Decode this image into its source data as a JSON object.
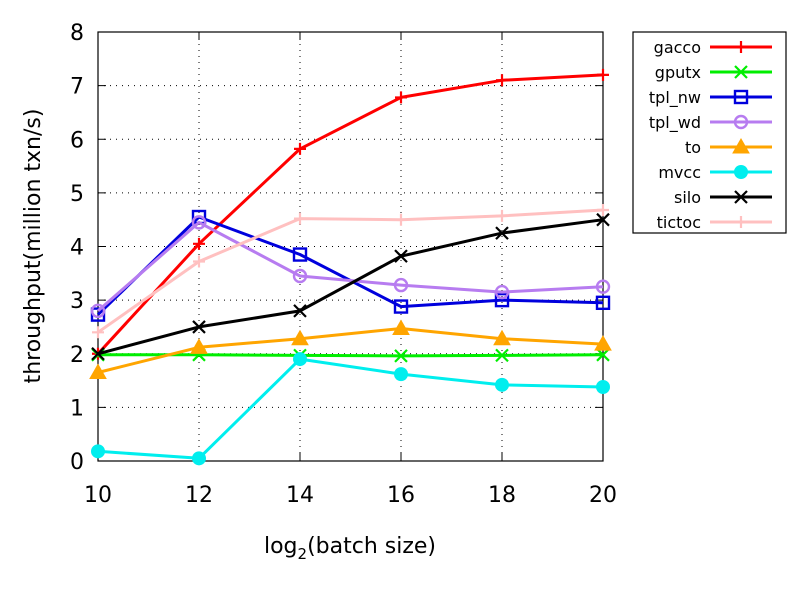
{
  "chart_data": {
    "type": "line",
    "title": "",
    "xlabel_prefix": "log",
    "xlabel_sub": "2",
    "xlabel_suffix": "(batch size)",
    "ylabel": "throughput(million txn/s)",
    "xlim": [
      10,
      20
    ],
    "ylim": [
      0,
      8
    ],
    "x_ticks": [
      10,
      12,
      14,
      16,
      18,
      20
    ],
    "y_ticks": [
      0,
      1,
      2,
      3,
      4,
      5,
      6,
      7,
      8
    ],
    "grid": true,
    "legend_position": "right",
    "x": [
      10,
      12,
      14,
      16,
      18,
      20
    ],
    "series": [
      {
        "name": "gacco",
        "color": "#ff0000",
        "marker": "plus",
        "values": [
          2.0,
          4.05,
          5.82,
          6.78,
          7.1,
          7.2
        ]
      },
      {
        "name": "gputx",
        "color": "#00ee00",
        "marker": "x",
        "values": [
          1.98,
          1.98,
          1.97,
          1.96,
          1.97,
          1.98
        ]
      },
      {
        "name": "tpl_nw",
        "color": "#0000dd",
        "marker": "open-square",
        "values": [
          2.73,
          4.55,
          3.85,
          2.88,
          3.0,
          2.95
        ]
      },
      {
        "name": "tpl_wd",
        "color": "#b77cf0",
        "marker": "open-circle",
        "values": [
          2.8,
          4.45,
          3.45,
          3.28,
          3.15,
          3.25
        ]
      },
      {
        "name": "to",
        "color": "#ffa500",
        "marker": "filled-triangle",
        "values": [
          1.65,
          2.12,
          2.28,
          2.47,
          2.28,
          2.18
        ]
      },
      {
        "name": "mvcc",
        "color": "#00eeee",
        "marker": "filled-circle",
        "values": [
          0.18,
          0.05,
          1.9,
          1.62,
          1.42,
          1.38
        ]
      },
      {
        "name": "silo",
        "color": "#000000",
        "marker": "x",
        "values": [
          2.0,
          2.5,
          2.8,
          3.82,
          4.25,
          4.5
        ]
      },
      {
        "name": "tictoc",
        "color": "#ffc0c0",
        "marker": "plus",
        "values": [
          2.4,
          3.72,
          4.52,
          4.5,
          4.57,
          4.68
        ]
      }
    ]
  }
}
